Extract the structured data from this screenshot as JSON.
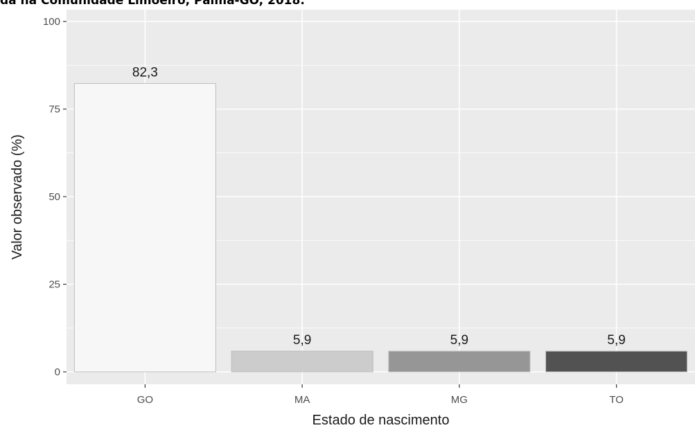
{
  "chart_data": {
    "type": "bar",
    "title": "da na Comunidade Limoeiro, Palma-GO, 2018.",
    "xlabel": "Estado de nascimento",
    "ylabel": "Valor observado (%)",
    "categories": [
      "GO",
      "MA",
      "MG",
      "TO"
    ],
    "values": [
      82.3,
      5.9,
      5.9,
      5.9
    ],
    "data_labels": [
      "82,3",
      "5,9",
      "5,9",
      "5,9"
    ],
    "bar_colors": [
      "#f7f7f7",
      "#cccccc",
      "#969696",
      "#525252"
    ],
    "bar_edge_color": "#bdbdbd",
    "ylim": [
      0,
      100
    ],
    "yticks": [
      0,
      25,
      50,
      75,
      100
    ],
    "ytick_labels": [
      "0",
      "25",
      "50",
      "75",
      "100"
    ],
    "panel_background": "#ebebeb",
    "grid_color": "#ffffff",
    "grid": true,
    "legend": "none"
  }
}
